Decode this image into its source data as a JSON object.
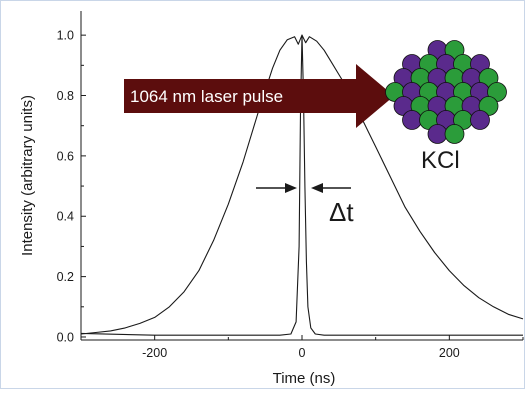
{
  "chart_data": {
    "type": "line",
    "xlabel": "Time (ns)",
    "ylabel": "Intensity (arbitrary units)",
    "xlim": [
      -300,
      300
    ],
    "ylim": [
      -0.01,
      1.08
    ],
    "x_ticks": [
      -200,
      0,
      200
    ],
    "y_ticks": [
      0.0,
      0.2,
      0.4,
      0.6,
      0.8,
      1.0
    ],
    "x_tick_labels": [
      "-200",
      "0",
      "200"
    ],
    "y_tick_labels": [
      "0.0",
      "0.2",
      "0.4",
      "0.6",
      "0.8",
      "1.0"
    ],
    "grid": false,
    "series": [
      {
        "x": [
          -300,
          -280,
          -260,
          -240,
          -220,
          -200,
          -180,
          -160,
          -140,
          -120,
          -100,
          -80,
          -60,
          -40,
          -30,
          -20,
          -10,
          -5,
          0,
          5,
          10,
          20,
          30,
          40,
          50,
          60,
          70,
          80,
          90,
          100,
          120,
          140,
          160,
          180,
          200,
          220,
          240,
          260,
          280,
          300
        ],
        "values": [
          0.01,
          0.015,
          0.02,
          0.03,
          0.045,
          0.065,
          0.1,
          0.15,
          0.22,
          0.32,
          0.44,
          0.58,
          0.74,
          0.89,
          0.95,
          0.985,
          0.995,
          0.97,
          1.0,
          0.975,
          0.995,
          0.98,
          0.95,
          0.91,
          0.87,
          0.83,
          0.78,
          0.73,
          0.68,
          0.63,
          0.53,
          0.43,
          0.35,
          0.28,
          0.22,
          0.17,
          0.13,
          0.1,
          0.075,
          0.06
        ]
      },
      {
        "x": [
          -300,
          -200,
          -100,
          -30,
          -15,
          -8,
          -4,
          -2,
          0,
          2,
          4,
          6,
          8,
          12,
          18,
          30,
          100,
          200,
          300
        ],
        "values": [
          0.012,
          0.006,
          0.006,
          0.006,
          0.01,
          0.05,
          0.3,
          0.75,
          1.0,
          0.8,
          0.5,
          0.25,
          0.1,
          0.03,
          0.01,
          0.006,
          0.006,
          0.006,
          0.006
        ]
      }
    ],
    "annotations": {
      "laser_label": "1064 nm laser pulse",
      "sample_label": "KCl",
      "width_label": "Δt"
    },
    "colors": {
      "arrow": "#5c0d0d",
      "purple": "#5a2a8c",
      "green": "#2b9c3a",
      "line": "#1a1a1a"
    }
  }
}
